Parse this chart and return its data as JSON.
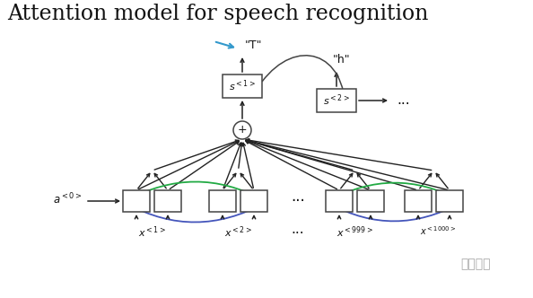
{
  "title": "Attention model for speech recognition",
  "title_fontsize": 17,
  "bg_color": "#ffffff",
  "box_color": "#ffffff",
  "box_edge_color": "#444444",
  "text_color": "#111111",
  "arrow_color": "#222222",
  "blue_arrow_color": "#4455bb",
  "green_arrow_color": "#22aa44",
  "cyan_arrow_color": "#3399cc",
  "s1_label": "$s^{<1>}$",
  "s2_label": "$s^{<2>}$",
  "a0_label": "$a^{<0>}$",
  "x1_label": "$x^{<1>}$",
  "x2_label": "$x^{<2>}$",
  "x999_label": "$x^{<999>}$",
  "x1000_label": "$x^{<1000>}$",
  "out1_label": "\"T\"",
  "out2_label": "\"h\"",
  "watermark": "手动手游"
}
